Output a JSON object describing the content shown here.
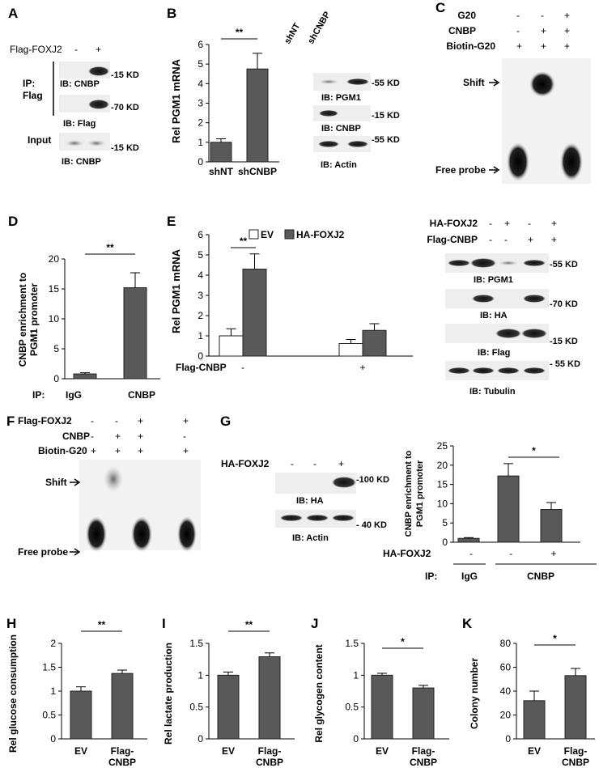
{
  "colors": {
    "bar": "#595959",
    "open_bar": "#ffffff",
    "axis": "#000000",
    "blot_bg": "#eeeeee",
    "band": "#111111"
  },
  "panelA": {
    "letter": "A",
    "row_label": "Flag-FOXJ2",
    "signs": [
      "-",
      "+"
    ],
    "ip_label": [
      "IP:",
      "Flag"
    ],
    "input_label": "Input",
    "ib": [
      "IB: CNBP",
      "IB: Flag",
      "IB: CNBP"
    ],
    "mw": [
      "-15 KD",
      "-70 KD",
      "-15 KD"
    ]
  },
  "panelB": {
    "letter": "B",
    "ib": [
      "IB: PGM1",
      "IB: CNBP",
      "IB: Actin"
    ],
    "lanes": [
      "shNT",
      "shCNBP"
    ],
    "mw": [
      "-55 KD",
      "-15 KD",
      "-55 KD"
    ]
  },
  "panelC": {
    "letter": "C",
    "rows": [
      {
        "label": "G20",
        "signs": [
          "-",
          "-",
          "+"
        ]
      },
      {
        "label": "CNBP",
        "signs": [
          "-",
          "+",
          "+"
        ]
      },
      {
        "label": "Biotin-G20",
        "signs": [
          "+",
          "+",
          "+"
        ]
      }
    ],
    "shift": "Shift",
    "free": "Free probe"
  },
  "panelD": {
    "letter": "D"
  },
  "panelE": {
    "letter": "E",
    "blot_rows": [
      {
        "label": "HA-FOXJ2",
        "signs": [
          "-",
          "+",
          "-",
          "+"
        ]
      },
      {
        "label": "Flag-CNBP",
        "signs": [
          "-",
          "-",
          "+",
          "+"
        ]
      }
    ],
    "ib": [
      "IB: PGM1",
      "IB: HA",
      "IB: Flag",
      "IB: Tubulin"
    ],
    "mw": [
      "-55 KD",
      "-70 KD",
      "-15 KD",
      "- 55 KD"
    ]
  },
  "panelF": {
    "letter": "F",
    "rows": [
      {
        "label": "Flag-FOXJ2",
        "signs": [
          "-",
          "-",
          "+",
          "+"
        ]
      },
      {
        "label": "CNBP",
        "signs": [
          "-",
          "+",
          "+",
          "-"
        ]
      },
      {
        "label": "Biotin-G20",
        "signs": [
          "+",
          "+",
          "+",
          "+"
        ]
      }
    ],
    "shift": "Shift",
    "free": "Free probe"
  },
  "panelG": {
    "letter": "G",
    "row_label": "HA-FOXJ2",
    "signs": [
      "-",
      "-",
      "+"
    ],
    "ib": [
      "IB: HA",
      "IB: Actin"
    ],
    "mw": [
      "-100 KD",
      "- 40 KD"
    ]
  },
  "chart_data": [
    {
      "id": "B",
      "type": "bar",
      "title": "",
      "ylabel": "Rel PGM1 mRNA",
      "ylim": [
        0,
        6
      ],
      "yticks": [
        0,
        1,
        2,
        3,
        4,
        5,
        6
      ],
      "categories": [
        "shNT",
        "shCNBP"
      ],
      "values": [
        1.0,
        4.75
      ],
      "errors": [
        0.18,
        0.8
      ],
      "significance": "**"
    },
    {
      "id": "D",
      "type": "bar",
      "ylabel": "CNBP enrichment to PGM1 promoter",
      "ylim": [
        0,
        20
      ],
      "yticks": [
        0,
        5,
        10,
        15,
        20
      ],
      "categories": [
        "IgG",
        "CNBP"
      ],
      "values": [
        0.8,
        15.2
      ],
      "errors": [
        0.2,
        2.5
      ],
      "significance": "**",
      "ip_label": "IP:"
    },
    {
      "id": "E",
      "type": "bar",
      "ylabel": "Rel PGM1 mRNA",
      "ylim": [
        0,
        6
      ],
      "yticks": [
        0,
        1,
        2,
        3,
        4,
        5,
        6
      ],
      "groups": [
        "-",
        "+"
      ],
      "group_label": "Flag-CNBP",
      "series": [
        {
          "name": "EV",
          "values": [
            1.0,
            0.62
          ],
          "errors": [
            0.35,
            0.2
          ]
        },
        {
          "name": "HA-FOXJ2",
          "values": [
            4.3,
            1.27
          ],
          "errors": [
            0.75,
            0.33
          ]
        }
      ],
      "significance": "**"
    },
    {
      "id": "G",
      "type": "bar",
      "ylabel": "CNBP enrichment to PGM1 promoter",
      "ylim": [
        0,
        25
      ],
      "yticks": [
        0,
        5,
        10,
        15,
        20,
        25
      ],
      "categories": [
        "IgG",
        "CNBP",
        "CNBP"
      ],
      "values": [
        1.0,
        17.2,
        8.5
      ],
      "errors": [
        0.2,
        3.2,
        1.8
      ],
      "ha_label": "HA-FOXJ2",
      "ha_signs": [
        "-",
        "-",
        "+"
      ],
      "ip_label": "IP:",
      "ip_groups": [
        "IgG",
        "CNBP"
      ],
      "significance": "*"
    },
    {
      "id": "H",
      "type": "bar",
      "ylabel": "Rel glucose consumption",
      "ylim": [
        0,
        2
      ],
      "yticks": [
        "0",
        "0.5",
        "1",
        "1.5",
        "2"
      ],
      "categories": [
        "EV",
        "Flag-CNBP"
      ],
      "values": [
        1.0,
        1.37
      ],
      "errors": [
        0.09,
        0.07
      ],
      "significance": "**"
    },
    {
      "id": "I",
      "type": "bar",
      "ylabel": "Rel lactate production",
      "ylim": [
        0,
        1.5
      ],
      "yticks": [
        "0",
        "0.5",
        "1",
        "1.5"
      ],
      "categories": [
        "EV",
        "Flag-CNBP"
      ],
      "values": [
        1.0,
        1.29
      ],
      "errors": [
        0.05,
        0.06
      ],
      "significance": "**"
    },
    {
      "id": "J",
      "type": "bar",
      "ylabel": "Rel glycogen content",
      "ylim": [
        0,
        1.5
      ],
      "yticks": [
        "0",
        "0.5",
        "1",
        "1.5"
      ],
      "categories": [
        "EV",
        "Flag-CNBP"
      ],
      "values": [
        1.0,
        0.8
      ],
      "errors": [
        0.03,
        0.04
      ],
      "significance": "*"
    },
    {
      "id": "K",
      "type": "bar",
      "ylabel": "Colony number",
      "ylim": [
        0,
        80
      ],
      "yticks": [
        "0",
        "20",
        "40",
        "60",
        "80"
      ],
      "categories": [
        "EV",
        "Flag-CNBP"
      ],
      "values": [
        32,
        53
      ],
      "errors": [
        8,
        6
      ],
      "significance": "*"
    }
  ]
}
